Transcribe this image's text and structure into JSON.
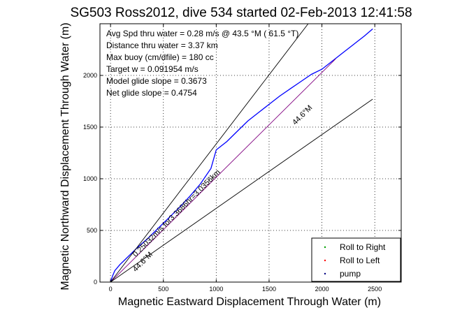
{
  "chart_data": {
    "type": "line",
    "title": "SG503 Ross2012, dive 534 started 02-Feb-2013 12:41:58",
    "xlabel": "Magnetic Eastward Displacement Through Water (m)",
    "ylabel": "Magnetic Northward Displacement Through Water (m)",
    "xlim": [
      -100,
      2750
    ],
    "ylim": [
      0,
      2500
    ],
    "x_ticks": [
      0,
      500,
      1000,
      1500,
      2000,
      2500
    ],
    "y_ticks": [
      0,
      500,
      1000,
      1500,
      2000
    ],
    "grid": true,
    "info_lines": [
      "Avg Spd thru water =  0.28 m/s @  43.5   °M ( 61.5 °T)",
      "Distance thru water =  3.37 km",
      "Max buoy (cm/dfile) = 180 cc",
      "Target w = 0.091954 m/s",
      "Model glide slope = 0.3673",
      "Net glide slope = 0.4754"
    ],
    "annotations": [
      {
        "text": "44.6°M",
        "x": 1830,
        "y": 1600,
        "rotation": -45
      },
      {
        "text": "0.25032m/s for3.3686hr=3.0356km",
        "x": 640,
        "y": 650,
        "rotation": -45
      },
      {
        "text": "44.6°M",
        "x": 320,
        "y": 180,
        "rotation": -45
      }
    ],
    "series": [
      {
        "name": "",
        "color": "#0000ff",
        "style": "line",
        "x": [
          0,
          20,
          40,
          90,
          150,
          250,
          350,
          450,
          550,
          650,
          750,
          850,
          950,
          1000,
          1100,
          1200,
          1300,
          1400,
          1500,
          1600,
          1700,
          1800,
          1900,
          2000,
          2100,
          2200,
          2300,
          2400,
          2480
        ],
        "y": [
          0,
          60,
          110,
          170,
          230,
          330,
          420,
          520,
          620,
          720,
          830,
          950,
          1100,
          1280,
          1360,
          1460,
          1560,
          1640,
          1720,
          1800,
          1870,
          1940,
          2010,
          2060,
          2140,
          2220,
          2300,
          2380,
          2450
        ]
      },
      {
        "name": "",
        "color": "#800080",
        "style": "line",
        "x": [
          0,
          2130
        ],
        "y": [
          0,
          2160
        ]
      },
      {
        "name": "",
        "color": "#000000",
        "style": "line",
        "x": [
          0,
          1870
        ],
        "y": [
          0,
          2500
        ]
      },
      {
        "name": "",
        "color": "#000000",
        "style": "line",
        "x": [
          0,
          2480
        ],
        "y": [
          0,
          1770
        ]
      }
    ],
    "legend": {
      "placement": "bottom-right",
      "entries": [
        {
          "label": "Roll to Right",
          "color": "#00a000"
        },
        {
          "label": "Roll to Left",
          "color": "#ff0000"
        },
        {
          "label": "pump",
          "color": "#000080"
        }
      ]
    }
  }
}
